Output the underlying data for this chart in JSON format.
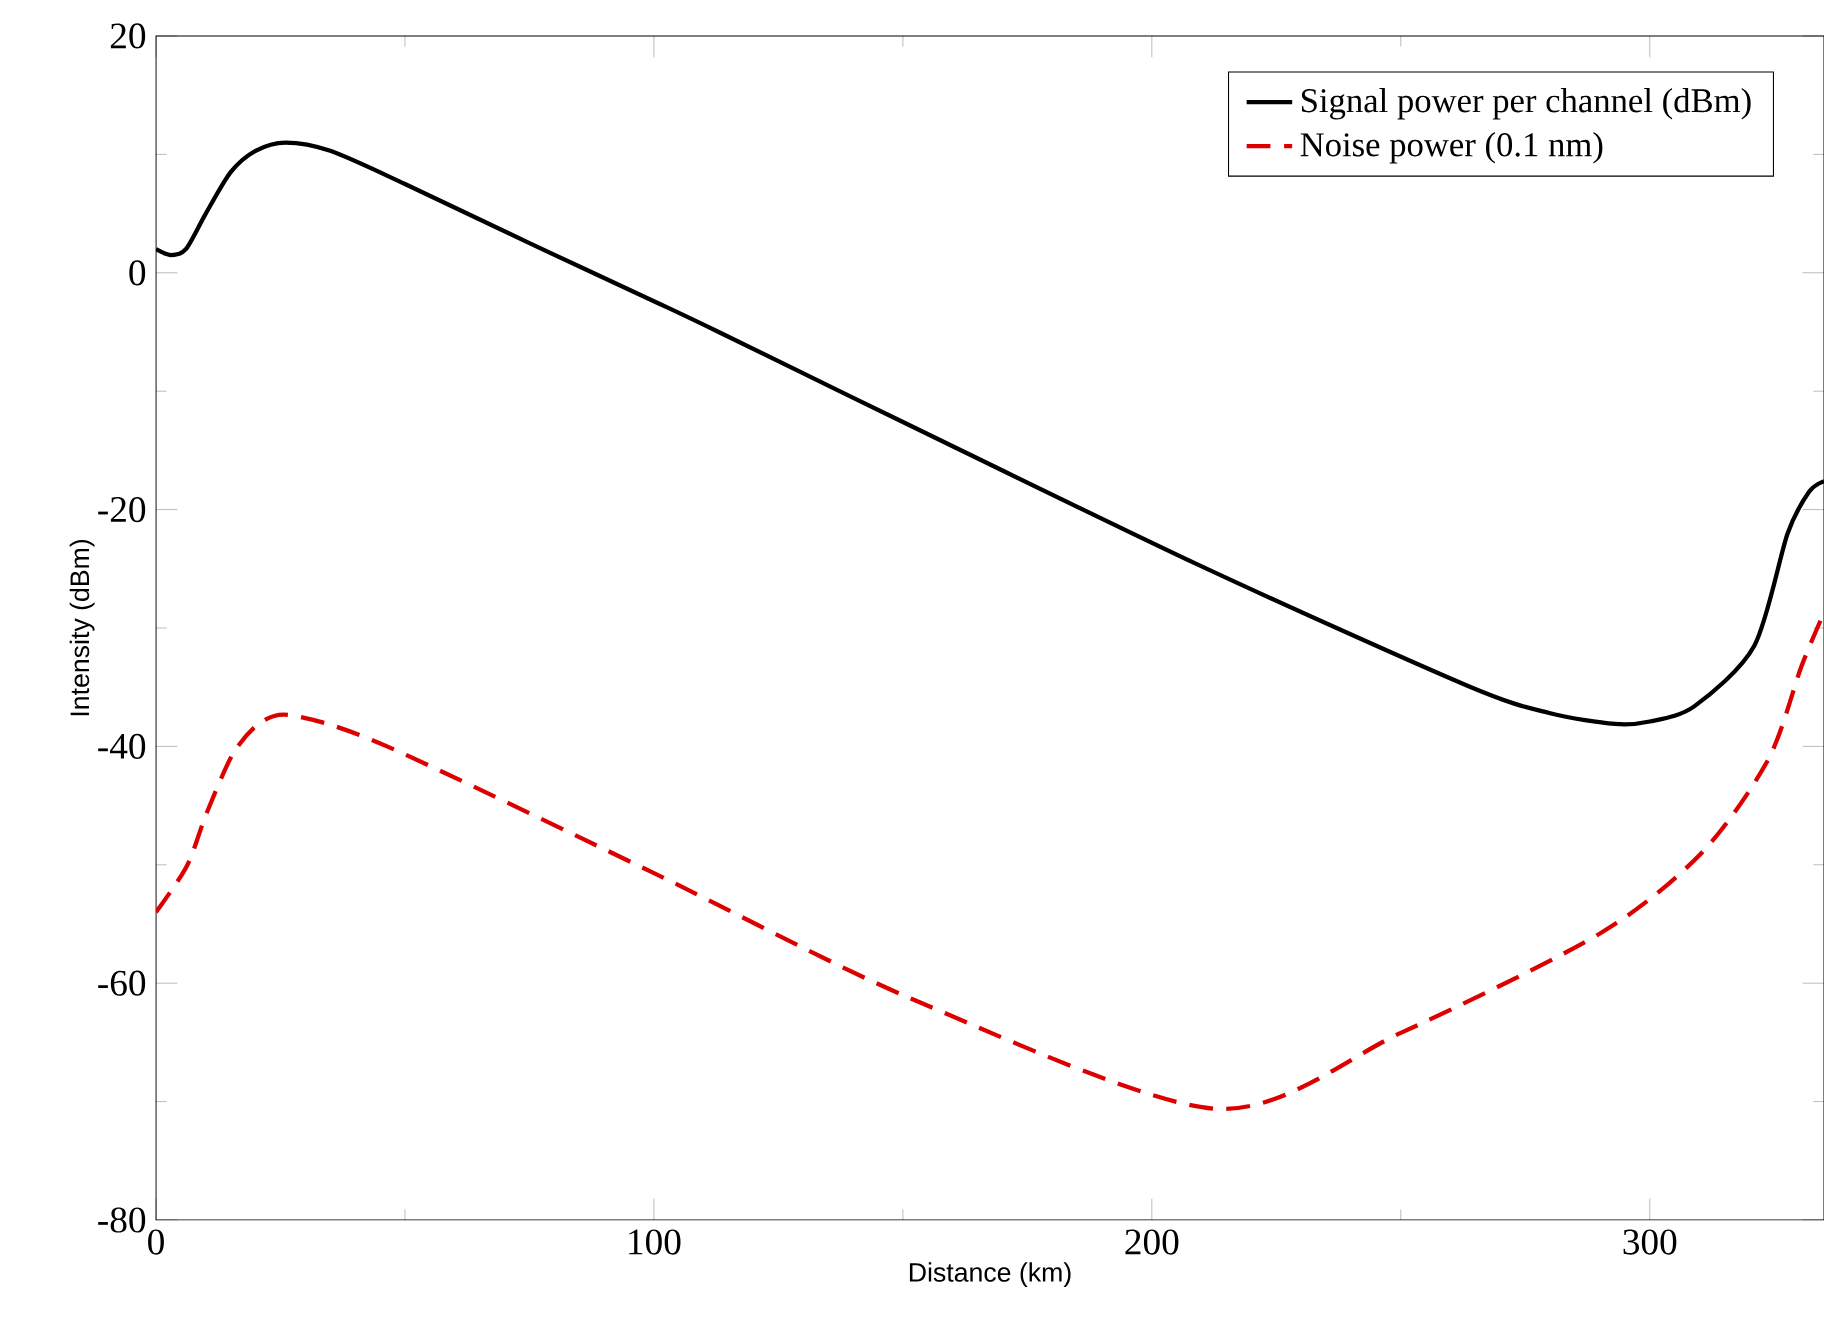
{
  "chart_data": {
    "type": "line",
    "xlabel": "Distance (km)",
    "ylabel": "Intensity (dBm)",
    "xlim": [
      0,
      335
    ],
    "ylim": [
      -80,
      20
    ],
    "xticks": [
      0,
      100,
      200,
      300
    ],
    "yticks": [
      -80,
      -60,
      -40,
      -20,
      0,
      20
    ],
    "grid": false,
    "legend": "top right",
    "marker": "none",
    "series": [
      {
        "name": "Signal power per channel (dBm)",
        "color": "#000000",
        "line_style": "solid",
        "x": [
          0,
          3,
          6,
          10,
          15,
          20,
          26,
          35,
          50,
          75,
          100,
          113,
          150,
          210,
          263.5,
          280,
          293,
          300,
          309,
          321,
          327.7,
          332,
          335
        ],
        "values": [
          2,
          1.5,
          2,
          5,
          8.5,
          10.3,
          11,
          10.3,
          7.5,
          2.5,
          -2.4,
          -5,
          -12.6,
          -24.8,
          -34.9,
          -37.2,
          -38.1,
          -37.9,
          -36.6,
          -31.5,
          -22,
          -18.5,
          -17.6
        ]
      },
      {
        "name": "Noise power (0.1 nm)",
        "color": "#dd0000",
        "line_style": "dashed",
        "x": [
          0,
          6.2,
          10.2,
          15.5,
          21,
          27.6,
          46.4,
          100,
          152.2,
          212.6,
          250,
          290,
          310.4,
          323.8,
          330.5,
          335
        ],
        "values": [
          -54,
          -50.1,
          -45.6,
          -40.6,
          -38,
          -37.4,
          -40,
          -50.7,
          -61.4,
          -70.6,
          -64.2,
          -55.8,
          -49,
          -41.1,
          -33.2,
          -28.7
        ]
      }
    ]
  }
}
